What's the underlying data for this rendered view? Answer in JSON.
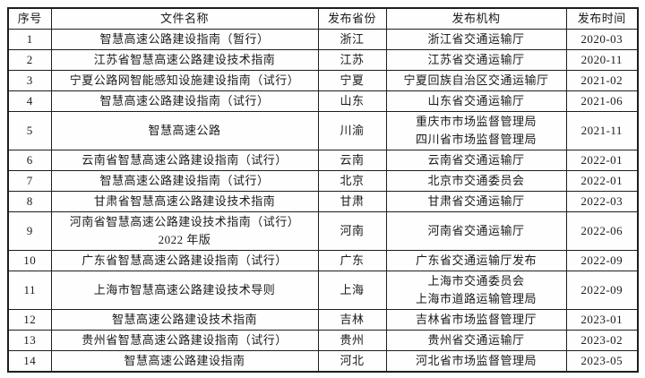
{
  "colors": {
    "border": "#1d1d1d",
    "text": "#1a1a1a",
    "background": "#fefefe"
  },
  "table": {
    "headers": {
      "no": "序号",
      "name": "文件名称",
      "province": "发布省份",
      "org": "发布机构",
      "date": "发布时间"
    },
    "rows": [
      {
        "no": "1",
        "name": "智慧高速公路建设指南（暂行）",
        "province": "浙江",
        "org": "浙江省交通运输厅",
        "date": "2020-03"
      },
      {
        "no": "2",
        "name": "江苏省智慧高速公路建设技术指南",
        "province": "江苏",
        "org": "江苏省交通运输厅",
        "date": "2020-11"
      },
      {
        "no": "3",
        "name": "宁夏公路网智能感知设施建设指南（试行）",
        "province": "宁夏",
        "org": "宁夏回族自治区交通运输厅",
        "date": "2021-02"
      },
      {
        "no": "4",
        "name": "智慧高速公路建设指南（试行）",
        "province": "山东",
        "org": "山东省交通运输厅",
        "date": "2021-06"
      },
      {
        "no": "5",
        "name": "智慧高速公路",
        "province": "川渝",
        "org": "重庆市市场监督管理局\n四川省市场监督管理局",
        "date": "2021-11"
      },
      {
        "no": "6",
        "name": "云南省智慧高速公路建设指南（试行）",
        "province": "云南",
        "org": "云南省交通运输厅",
        "date": "2022-01"
      },
      {
        "no": "7",
        "name": "智慧高速公路建设指南（试行）",
        "province": "北京",
        "org": "北京市交通委员会",
        "date": "2022-01"
      },
      {
        "no": "8",
        "name": "甘肃省智慧高速公路建设技术指南",
        "province": "甘肃",
        "org": "甘肃省交通运输厅",
        "date": "2022-03"
      },
      {
        "no": "9",
        "name": "河南省智慧高速公路建设技术指南（试行）\n2022 年版",
        "province": "河南",
        "org": "河南省交通运输厅",
        "date": "2022-06"
      },
      {
        "no": "10",
        "name": "广东省智慧高速公路建设指南（试行）",
        "province": "广东",
        "org": "广东省交通运输厅发布",
        "date": "2022-09"
      },
      {
        "no": "11",
        "name": "上海市智慧高速公路建设技术导则",
        "province": "上海",
        "org": "上海市交通委员会\n上海市道路运输管理局",
        "date": "2022-09"
      },
      {
        "no": "12",
        "name": "智慧高速公路建设技术指南",
        "province": "吉林",
        "org": "吉林省市场监督管理厅",
        "date": "2023-01"
      },
      {
        "no": "13",
        "name": "贵州省智慧高速公路建设指南（试行）",
        "province": "贵州",
        "org": "贵州省交通运输厅",
        "date": "2023-02"
      },
      {
        "no": "14",
        "name": "智慧高速公路建设指南",
        "province": "河北",
        "org": "河北省市场监督管理局",
        "date": "2023-05"
      }
    ]
  }
}
